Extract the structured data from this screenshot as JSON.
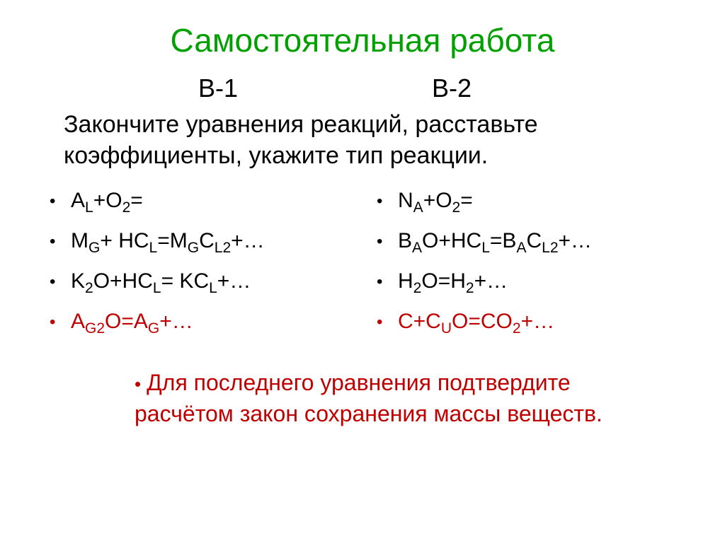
{
  "title": "Самостоятельная работа",
  "variant1": "В-1",
  "variant2": "В-2",
  "instruction": "Закончите уравнения реакций, расставьте коэффициенты, укажите тип реакции.",
  "col1": {
    "eq1": {
      "pre": "A",
      "sub1": "L",
      "mid": "+O",
      "sub2": "2",
      "post": "="
    },
    "eq2": {
      "pre": "M",
      "sub1": "G",
      "mid": "+ HC",
      "sub2": "L",
      "mid2": "=M",
      "sub3": "G",
      "mid3": "C",
      "sub4": "L",
      "sub5": "2",
      "post": "+…"
    },
    "eq3": {
      "pre": "K",
      "sub1": "2",
      "mid": "O+HC",
      "sub2": "L",
      "mid2": "= KC",
      "sub3": "L",
      "post": "+…"
    },
    "eq4": {
      "pre": "A",
      "sub1": "G",
      "sub2": "2",
      "mid": "O=A",
      "sub3": "G",
      "post": "+…"
    }
  },
  "col2": {
    "eq1": {
      "pre": "N",
      "sub1": "A",
      "mid": "+O",
      "sub2": "2",
      "post": "="
    },
    "eq2": {
      "pre": "B",
      "sub1": "A",
      "mid": "O+HC",
      "sub2": "L",
      "mid2": "=B",
      "sub3": "A",
      "mid3": "C",
      "sub4": "L",
      "sub5": "2",
      "post": "+…"
    },
    "eq3": {
      "pre": "H",
      "sub1": "2",
      "mid": "O=H",
      "sub2": "2",
      "post": "+…"
    },
    "eq4": {
      "pre": "C+C",
      "sub1": "U",
      "mid": "O=CO",
      "sub2": "2",
      "post": "+…"
    }
  },
  "footer": "Для последнего уравнения подтвердите расчётом закон сохранения массы веществ.",
  "colors": {
    "title": "#00a000",
    "text": "#000000",
    "highlight": "#c00000",
    "background": "#ffffff"
  },
  "fonts": {
    "title_size": 46,
    "variant_size": 36,
    "instruction_size": 34,
    "equation_size": 30,
    "footer_size": 32
  }
}
